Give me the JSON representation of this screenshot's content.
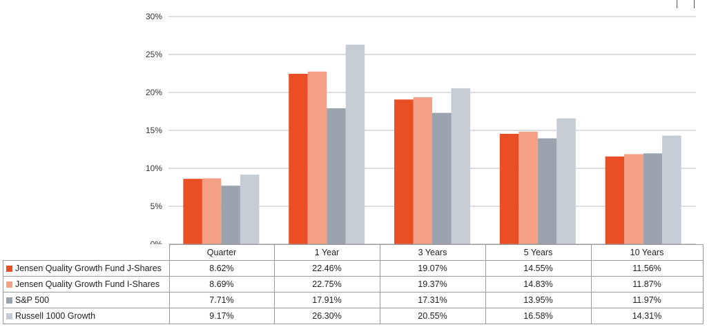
{
  "chart_data": {
    "type": "bar",
    "categories": [
      "Quarter",
      "1 Year",
      "3 Years",
      "5 Years",
      "10 Years"
    ],
    "series": [
      {
        "name": "Jensen Quality Growth Fund J-Shares",
        "color": "#ea4e25",
        "values": [
          8.62,
          22.46,
          19.07,
          14.55,
          11.56
        ],
        "labels": [
          "8.62%",
          "22.46%",
          "19.07%",
          "14.55%",
          "11.56%"
        ]
      },
      {
        "name": "Jensen Quality Growth Fund I-Shares",
        "color": "#f4a086",
        "values": [
          8.69,
          22.75,
          19.37,
          14.83,
          11.87
        ],
        "labels": [
          "8.69%",
          "22.75%",
          "19.37%",
          "14.83%",
          "11.87%"
        ]
      },
      {
        "name": "S&P 500",
        "color": "#9aa3ae",
        "values": [
          7.71,
          17.91,
          17.31,
          13.95,
          11.97
        ],
        "labels": [
          "7.71%",
          "17.91%",
          "17.31%",
          "13.95%",
          "11.97%"
        ]
      },
      {
        "name": "Russell 1000 Growth",
        "color": "#c6ccd5",
        "values": [
          9.17,
          26.3,
          20.55,
          16.58,
          14.31
        ],
        "labels": [
          "9.17%",
          "26.30%",
          "20.55%",
          "16.58%",
          "14.31%"
        ]
      }
    ],
    "ylim": [
      0,
      30
    ],
    "yticks": [
      0,
      5,
      10,
      15,
      20,
      25,
      30
    ],
    "ytick_labels": [
      "0%",
      "5%",
      "10%",
      "15%",
      "20%",
      "25%",
      "30%"
    ],
    "grid": true,
    "legend": "data-table-below"
  }
}
